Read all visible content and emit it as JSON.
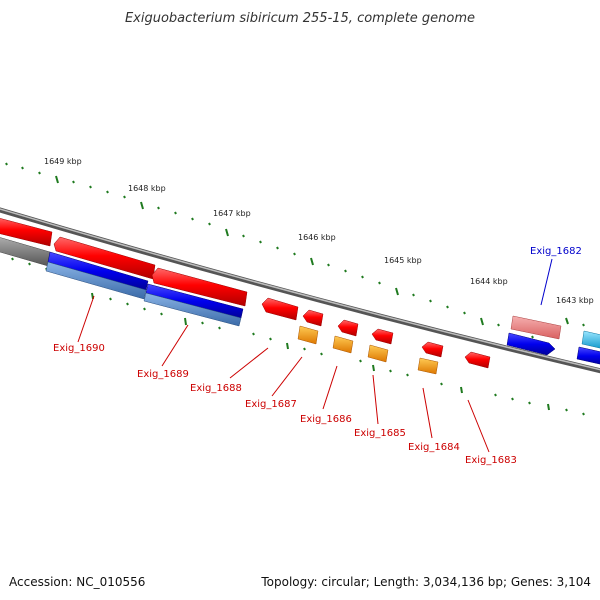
{
  "title": "Exiguobacterium sibiricum 255-15, complete genome",
  "footer": {
    "accession": "Accession: NC_010556",
    "summary": "Topology: circular; Length: 3,034,136 bp; Genes: 3,104"
  },
  "ticks": [
    "1649 kbp",
    "1648 kbp",
    "1647 kbp",
    "1646 kbp",
    "1645 kbp",
    "1644 kbp",
    "1643 kbp"
  ],
  "genes": [
    {
      "label": "Exig_1690",
      "color": "#cc0000"
    },
    {
      "label": "Exig_1689",
      "color": "#cc0000"
    },
    {
      "label": "Exig_1688",
      "color": "#cc0000"
    },
    {
      "label": "Exig_1687",
      "color": "#cc0000"
    },
    {
      "label": "Exig_1686",
      "color": "#cc0000"
    },
    {
      "label": "Exig_1685",
      "color": "#cc0000"
    },
    {
      "label": "Exig_1684",
      "color": "#cc0000"
    },
    {
      "label": "Exig_1683",
      "color": "#cc0000"
    },
    {
      "label": "Exig_1682",
      "color": "#0000cc"
    }
  ],
  "colors": {
    "backbone": "#7a7a7a",
    "gene_red": "#ee0000",
    "gene_pink": "#e88080",
    "gene_blue": "#0000dd",
    "gene_steel": "#4a7fc0",
    "gene_orange": "#ff9900",
    "gene_cyan": "#33bbee",
    "tick_green": "#1f7a1f"
  }
}
